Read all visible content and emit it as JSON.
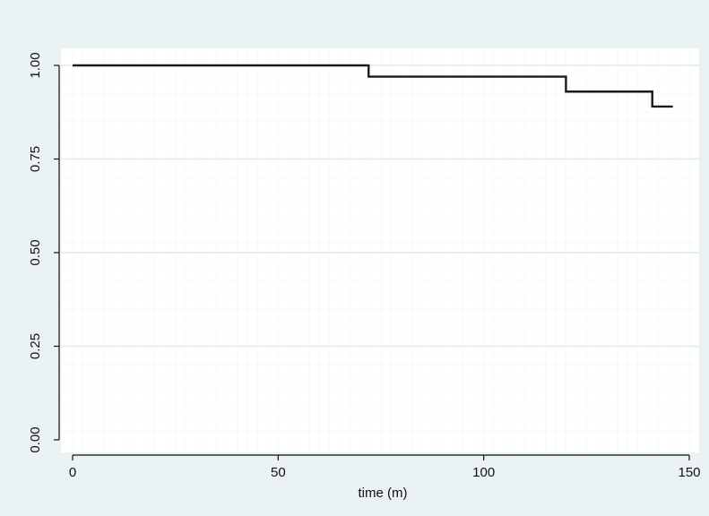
{
  "chart_data": {
    "type": "line",
    "title": "",
    "xlabel": "time (m)",
    "ylabel": "",
    "xlim": [
      0,
      150
    ],
    "ylim": [
      0,
      1
    ],
    "xticks": [
      0,
      50,
      100,
      150
    ],
    "xtick_labels": [
      "0",
      "50",
      "100",
      "150"
    ],
    "yticks": [
      0,
      0.25,
      0.5,
      0.75,
      1
    ],
    "ytick_labels": [
      "0.00",
      "0.25",
      "0.50",
      "0.75",
      "1.00"
    ],
    "grid": true,
    "step": true,
    "series": [
      {
        "x": [
          0,
          72,
          120,
          141,
          146
        ],
        "y": [
          1.0,
          0.97,
          0.93,
          0.89,
          0.89
        ]
      }
    ],
    "colors": {
      "background": "#eaf2f3",
      "plot_background": "#ffffff",
      "gridline": "#e7eeee",
      "line": "#1a1a1a"
    }
  }
}
